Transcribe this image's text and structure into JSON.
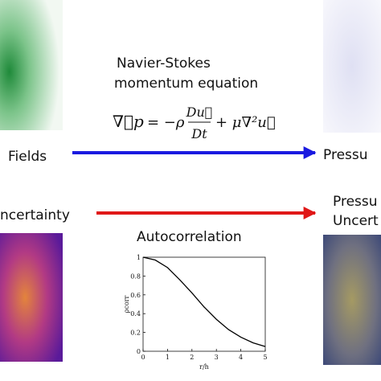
{
  "labels": {
    "title_line1": "Navier-Stokes",
    "title_line2": "momentum equation",
    "left_top": "Fields",
    "right_top": "Pressu",
    "left_bottom": "ncertainty",
    "right_bottom_line1": "Pressu",
    "right_bottom_line2": "Uncert",
    "middle_bottom": "Autocorrelation"
  },
  "equation": {
    "lhs": "∇⃗p",
    "rhs1": "= −ρ",
    "numerator": "Du⃗",
    "denominator": "Dt",
    "rhs2": "+ μ∇²u⃗"
  },
  "inset_chart": {
    "type": "line",
    "xlabel": "r/h",
    "ylabel": "ρcorr",
    "x": [
      0,
      0.5,
      1,
      1.5,
      2,
      2.5,
      3,
      3.5,
      4,
      4.5,
      5
    ],
    "values": [
      1,
      0.97,
      0.89,
      0.76,
      0.62,
      0.47,
      0.34,
      0.23,
      0.15,
      0.09,
      0.05
    ],
    "xlim": [
      0,
      5
    ],
    "ylim": [
      0,
      1
    ],
    "xticks": [
      0,
      1,
      2,
      3,
      4,
      5
    ],
    "yticks": [
      0,
      0.2,
      0.4,
      0.6,
      0.8,
      1
    ],
    "color": "#000000"
  }
}
